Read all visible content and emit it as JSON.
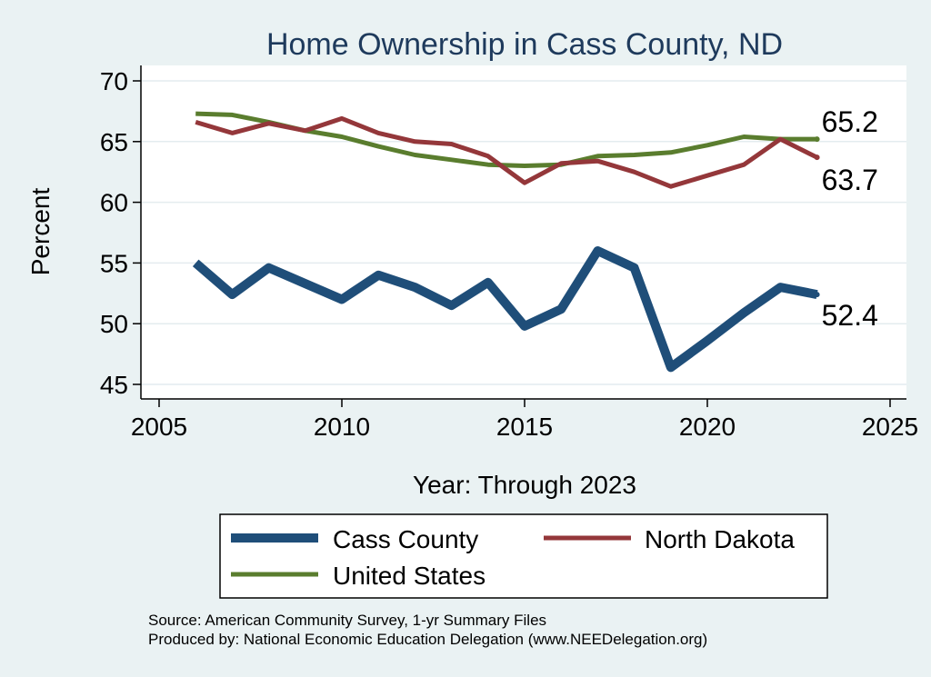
{
  "chart_data": {
    "type": "line",
    "title": "Home Ownership in Cass County, ND",
    "xlabel": "Year: Through 2023",
    "ylabel": "Percent",
    "xlim": [
      2005,
      2025
    ],
    "ylim": [
      45,
      70
    ],
    "xticks": [
      2005,
      2010,
      2015,
      2020,
      2025
    ],
    "yticks": [
      45,
      50,
      55,
      60,
      65,
      70
    ],
    "grid": "horizontal",
    "x": [
      2006,
      2007,
      2008,
      2009,
      2010,
      2011,
      2012,
      2013,
      2014,
      2015,
      2016,
      2017,
      2018,
      2019,
      2020,
      2021,
      2022,
      2023
    ],
    "series": [
      {
        "name": "Cass County",
        "color": "#1f4e79",
        "values": [
          55.0,
          52.4,
          54.6,
          53.3,
          52.0,
          54.0,
          53.0,
          51.5,
          53.4,
          49.8,
          51.2,
          56.0,
          54.6,
          46.4,
          48.6,
          50.9,
          53.0,
          52.4
        ],
        "end_label": "52.4"
      },
      {
        "name": "North Dakota",
        "color": "#94373a",
        "values": [
          66.6,
          65.7,
          66.5,
          65.9,
          66.9,
          65.7,
          65.0,
          64.8,
          63.8,
          61.6,
          63.2,
          63.4,
          62.5,
          61.3,
          62.2,
          63.1,
          65.2,
          63.7
        ],
        "end_label": "63.7"
      },
      {
        "name": "United States",
        "color": "#5a7d2e",
        "values": [
          67.3,
          67.2,
          66.6,
          65.9,
          65.4,
          64.6,
          63.9,
          63.5,
          63.1,
          63.0,
          63.1,
          63.8,
          63.9,
          64.1,
          64.7,
          65.4,
          65.2,
          65.2
        ],
        "end_label": "65.2"
      }
    ],
    "legend": {
      "position": "bottom",
      "entries": [
        "Cass County",
        "North Dakota",
        "United States"
      ]
    },
    "notes": [
      "Source: American Community Survey, 1-yr Summary Files",
      "Produced by: National Economic Education Delegation (www.NEEDelegation.org)"
    ]
  }
}
